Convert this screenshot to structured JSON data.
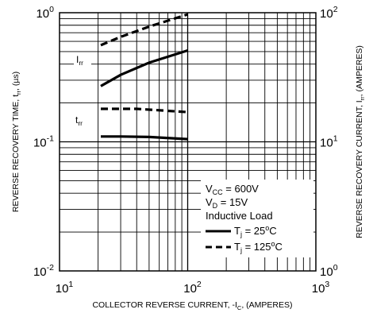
{
  "chart_data": {
    "type": "line",
    "x_axis": {
      "label": "COLLECTOR REVERSE CURRENT, -I",
      "label_sub": "C",
      "label_suffix": ", (AMPERES)",
      "scale": "log",
      "range": [
        10,
        1000
      ],
      "ticks": [
        {
          "base": "10",
          "exp": "1",
          "value": 10
        },
        {
          "base": "10",
          "exp": "2",
          "value": 100
        },
        {
          "base": "10",
          "exp": "3",
          "value": 1000
        }
      ]
    },
    "y_axis_left": {
      "label": "REVERSE RECOVERY TIME, t",
      "label_sub": "rr",
      "label_suffix": ", (µs)",
      "scale": "log",
      "range": [
        0.01,
        1
      ],
      "ticks": [
        {
          "base": "10",
          "exp": "0",
          "value": 1
        },
        {
          "base": "10",
          "exp": "-1",
          "value": 0.1
        },
        {
          "base": "10",
          "exp": "-2",
          "value": 0.01
        }
      ]
    },
    "y_axis_right": {
      "label": "REVERSE RECOVERY CURRENT, I",
      "label_sub": "rr",
      "label_suffix": ", (AMPERES)",
      "scale": "log",
      "range": [
        1,
        100
      ],
      "ticks": [
        {
          "base": "10",
          "exp": "2",
          "value": 100
        },
        {
          "base": "10",
          "exp": "1",
          "value": 10
        },
        {
          "base": "10",
          "exp": "0",
          "value": 1
        }
      ]
    },
    "grid": true,
    "annotations": [
      {
        "id": "irr",
        "main": "I",
        "sub": "rr"
      },
      {
        "id": "trr",
        "main": "t",
        "sub": "rr"
      }
    ],
    "legend": {
      "placement": "bottom-right",
      "conditions": [
        {
          "main": "V",
          "sub": "CC",
          "rest": " = 600V"
        },
        {
          "main": "V",
          "sub": "D",
          "rest": " = 15V"
        },
        {
          "main": "Inductive Load",
          "sub": "",
          "rest": ""
        }
      ],
      "entries": [
        {
          "style": "solid",
          "main": "T",
          "sub": "j",
          "rest_before": " = 25",
          "sup": "o",
          "rest_after": "C"
        },
        {
          "style": "dashed",
          "main": "T",
          "sub": "j",
          "rest_before": " = 125",
          "sup": "o",
          "rest_after": "C"
        }
      ]
    },
    "series": [
      {
        "quantity": "Irr",
        "axis": "right",
        "style": "dashed",
        "tj": 125,
        "points": [
          [
            21,
            56
          ],
          [
            30,
            65
          ],
          [
            50,
            78
          ],
          [
            100,
            97
          ]
        ]
      },
      {
        "quantity": "Irr",
        "axis": "right",
        "style": "solid",
        "tj": 25,
        "points": [
          [
            21,
            27
          ],
          [
            30,
            33
          ],
          [
            50,
            41
          ],
          [
            100,
            51
          ]
        ]
      },
      {
        "quantity": "trr",
        "axis": "left",
        "style": "dashed",
        "tj": 125,
        "points": [
          [
            21,
            0.18
          ],
          [
            40,
            0.18
          ],
          [
            100,
            0.17
          ]
        ]
      },
      {
        "quantity": "trr",
        "axis": "left",
        "style": "solid",
        "tj": 25,
        "points": [
          [
            21,
            0.11
          ],
          [
            30,
            0.11
          ],
          [
            50,
            0.109
          ],
          [
            100,
            0.105
          ]
        ]
      }
    ]
  }
}
